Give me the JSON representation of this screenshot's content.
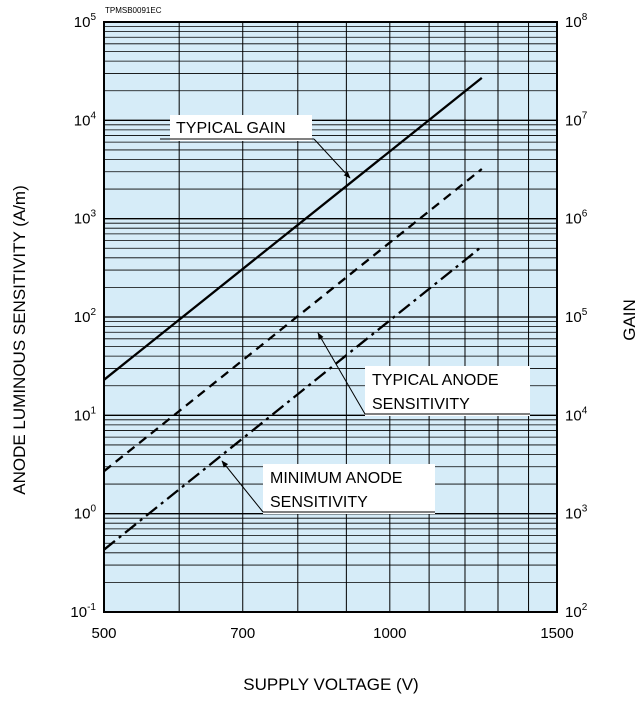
{
  "figure_code": "TPMSB0091EC",
  "chart_data": {
    "type": "line",
    "xlabel": "SUPPLY  VOLTAGE (V)",
    "ylabel_left": "ANODE LUMINOUS SENSITIVITY (A/m)",
    "ylabel_right": "GAIN",
    "x_scale": "log",
    "y_scale": "log",
    "xlim": [
      500,
      1500
    ],
    "ylim_left": [
      0.1,
      100000
    ],
    "ylim_right": [
      100,
      100000000
    ],
    "x_ticks": [
      "500",
      "700",
      "1000",
      "1500"
    ],
    "y_ticks_left": [
      {
        "base": "10",
        "exp": "5"
      },
      {
        "base": "10",
        "exp": "4"
      },
      {
        "base": "10",
        "exp": "3"
      },
      {
        "base": "10",
        "exp": "2"
      },
      {
        "base": "10",
        "exp": "1"
      },
      {
        "base": "10",
        "exp": "0"
      },
      {
        "base": "10",
        "exp": "-1"
      }
    ],
    "y_ticks_right": [
      {
        "base": "10",
        "exp": "8"
      },
      {
        "base": "10",
        "exp": "7"
      },
      {
        "base": "10",
        "exp": "6"
      },
      {
        "base": "10",
        "exp": "5"
      },
      {
        "base": "10",
        "exp": "4"
      },
      {
        "base": "10",
        "exp": "3"
      },
      {
        "base": "10",
        "exp": "2"
      }
    ],
    "grid": true,
    "background_color": "#d6ecf8",
    "line_color": "#000000",
    "series": [
      {
        "name": "TYPICAL GAIN",
        "style": "solid",
        "axis": "right",
        "points": [
          [
            500,
            23000
          ],
          [
            1250,
            27000000
          ]
        ]
      },
      {
        "name": "TYPICAL ANODE SENSITIVITY",
        "style": "dashed",
        "axis": "left",
        "points": [
          [
            500,
            2.7
          ],
          [
            1250,
            3200
          ]
        ]
      },
      {
        "name": "MINIMUM ANODE SENSITIVITY",
        "style": "dashdot",
        "axis": "left",
        "points": [
          [
            500,
            0.43
          ],
          [
            1250,
            520
          ]
        ]
      }
    ],
    "annotations": [
      {
        "lines": [
          "TYPICAL GAIN"
        ],
        "series": "TYPICAL GAIN"
      },
      {
        "lines": [
          "TYPICAL ANODE",
          "SENSITIVITY"
        ],
        "series": "TYPICAL ANODE SENSITIVITY"
      },
      {
        "lines": [
          "MINIMUM ANODE",
          "SENSITIVITY"
        ],
        "series": "MINIMUM ANODE SENSITIVITY"
      }
    ]
  }
}
